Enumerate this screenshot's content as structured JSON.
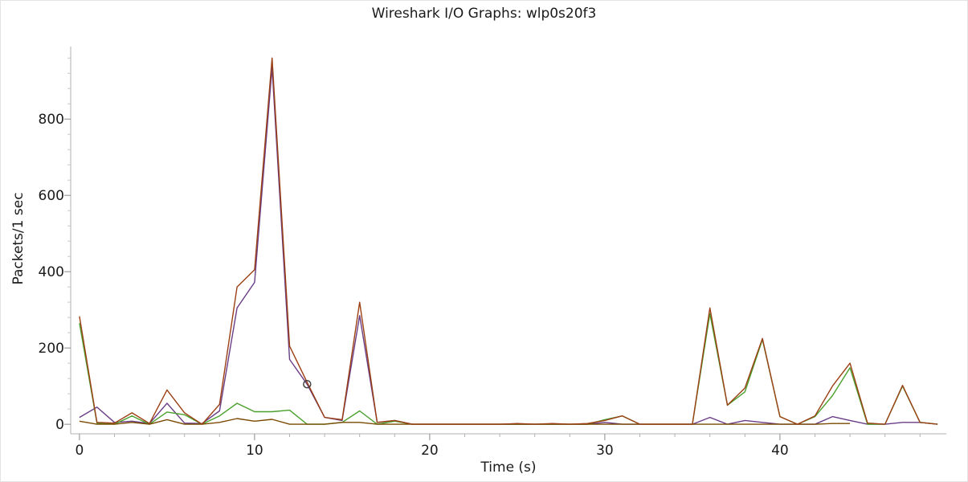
{
  "chart_data": {
    "type": "line",
    "title": "Wireshark I/O Graphs: wlp0s20f3",
    "xlabel": "Time (s)",
    "ylabel": "Packets/1 sec",
    "xlim": [
      -0.5,
      49.5
    ],
    "ylim": [
      -25,
      990
    ],
    "x_ticks": [
      "0",
      "10",
      "20",
      "30",
      "40"
    ],
    "y_ticks": [
      "0",
      "200",
      "400",
      "600",
      "800"
    ],
    "grid": false,
    "legend": "none",
    "marker": {
      "x": 13,
      "y": 105,
      "color": "#444444"
    },
    "series": [
      {
        "color": "#6a3d86",
        "x": [
          0,
          1,
          2,
          3,
          4,
          5,
          6,
          7,
          8,
          9,
          10,
          11,
          12,
          13,
          14,
          15,
          16,
          17,
          18,
          19,
          20,
          21,
          22,
          23,
          24,
          25,
          26,
          27,
          28,
          29,
          30,
          31,
          32,
          33,
          34,
          35,
          36,
          37,
          38,
          39,
          40,
          41,
          42,
          43,
          44,
          45,
          46,
          47,
          48,
          49
        ],
        "values": [
          18,
          45,
          5,
          8,
          2,
          55,
          3,
          2,
          35,
          305,
          372,
          935,
          170,
          105,
          18,
          10,
          285,
          5,
          10,
          0,
          0,
          0,
          0,
          0,
          0,
          0,
          0,
          0,
          0,
          0,
          5,
          0,
          0,
          0,
          0,
          0,
          18,
          0,
          10,
          5,
          0,
          0,
          0,
          20,
          10,
          0,
          0,
          5,
          5,
          0
        ]
      },
      {
        "color": "#4aa02c",
        "x": [
          0,
          1,
          2,
          3,
          4,
          5,
          6,
          7,
          8,
          9,
          10,
          11,
          12,
          13,
          14,
          15,
          16,
          17,
          18,
          19,
          20,
          21,
          22,
          23,
          24,
          25,
          26,
          27,
          28,
          29,
          30,
          31,
          32,
          33,
          34,
          35,
          36,
          37,
          38,
          39,
          40,
          41,
          42,
          43,
          44,
          45,
          46,
          47,
          48,
          49
        ],
        "values": [
          265,
          3,
          0,
          22,
          0,
          32,
          25,
          0,
          22,
          55,
          33,
          33,
          37,
          0,
          0,
          5,
          35,
          0,
          8,
          0,
          0,
          0,
          0,
          0,
          0,
          0,
          0,
          0,
          0,
          0,
          12,
          22,
          0,
          0,
          0,
          0,
          290,
          50,
          85,
          222,
          20,
          0,
          20,
          75,
          148,
          0,
          0,
          100,
          5,
          0
        ]
      },
      {
        "color": "#7a4a00",
        "x": [
          0,
          1,
          2,
          3,
          4,
          5,
          6,
          7,
          8,
          9,
          10,
          11,
          12,
          13,
          14,
          15,
          16,
          17,
          18,
          19,
          20,
          21,
          22,
          23,
          24,
          25,
          26,
          27,
          28,
          29,
          30,
          31,
          32,
          33,
          34,
          35,
          36,
          37,
          38,
          39,
          40,
          41,
          42,
          43,
          44
        ],
        "values": [
          8,
          0,
          0,
          5,
          0,
          12,
          0,
          0,
          5,
          15,
          8,
          13,
          0,
          0,
          0,
          5,
          5,
          0,
          0,
          0,
          0,
          0,
          0,
          0,
          0,
          0,
          0,
          0,
          0,
          0,
          0,
          0,
          0,
          0,
          0,
          0,
          0,
          0,
          0,
          0,
          0,
          0,
          0,
          2,
          2
        ]
      },
      {
        "color": "#9b3f14",
        "x": [
          0,
          1,
          2,
          3,
          4,
          5,
          6,
          7,
          8,
          9,
          10,
          11,
          12,
          13,
          14,
          15,
          16,
          17,
          18,
          19,
          20,
          21,
          22,
          23,
          24,
          25,
          26,
          27,
          28,
          29,
          30,
          31,
          32,
          33,
          34,
          35,
          36,
          37,
          38,
          39,
          40,
          41,
          42,
          43,
          44,
          45,
          46,
          47,
          48,
          49
        ],
        "values": [
          283,
          5,
          3,
          30,
          2,
          90,
          30,
          0,
          52,
          360,
          405,
          960,
          205,
          110,
          18,
          12,
          320,
          5,
          10,
          0,
          0,
          0,
          0,
          0,
          0,
          2,
          0,
          2,
          0,
          2,
          10,
          22,
          0,
          0,
          0,
          0,
          305,
          50,
          95,
          225,
          20,
          0,
          22,
          100,
          160,
          3,
          0,
          102,
          5,
          0
        ]
      }
    ]
  }
}
